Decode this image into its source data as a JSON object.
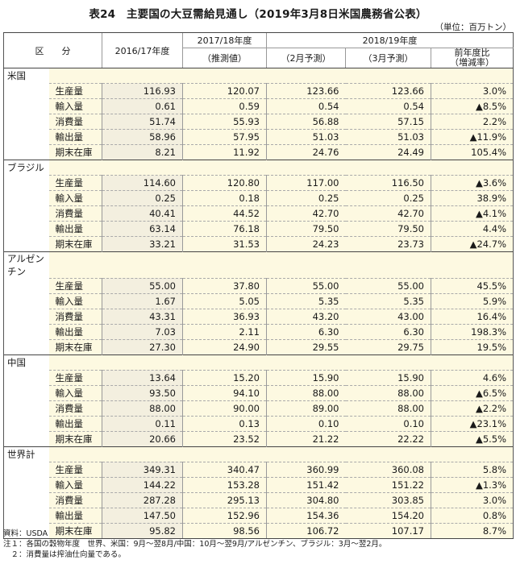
{
  "title": "表24　主要国の大豆需給見通し（2019年3月8日米国農務省公表）",
  "unit": "（単位：百万トン）",
  "header": {
    "category": "区　　分",
    "col_2016": "2016/17年度",
    "col_2017_top": "2017/18年度",
    "col_2017_sub": "（推測値）",
    "col_2018_top": "2018/19年度",
    "col_2018_feb": "（2月予測）",
    "col_2018_mar": "（3月予測）",
    "col_change_top": "前年度比",
    "col_change_sub": "（増減率）"
  },
  "countries": [
    {
      "name": "米国",
      "rows": [
        {
          "item": "生産量",
          "v2016": "116.93",
          "v2017": "120.07",
          "feb": "123.66",
          "mar": "123.66",
          "chg": "3.0%"
        },
        {
          "item": "輸入量",
          "v2016": "0.61",
          "v2017": "0.59",
          "feb": "0.54",
          "mar": "0.54",
          "chg": "▲8.5%"
        },
        {
          "item": "消費量",
          "v2016": "51.74",
          "v2017": "55.93",
          "feb": "56.88",
          "mar": "57.15",
          "chg": "2.2%"
        },
        {
          "item": "輸出量",
          "v2016": "58.96",
          "v2017": "57.95",
          "feb": "51.03",
          "mar": "51.03",
          "chg": "▲11.9%"
        },
        {
          "item": "期末在庫",
          "v2016": "8.21",
          "v2017": "11.92",
          "feb": "24.76",
          "mar": "24.49",
          "chg": "105.4%"
        }
      ]
    },
    {
      "name": "ブラジル",
      "rows": [
        {
          "item": "生産量",
          "v2016": "114.60",
          "v2017": "120.80",
          "feb": "117.00",
          "mar": "116.50",
          "chg": "▲3.6%"
        },
        {
          "item": "輸入量",
          "v2016": "0.25",
          "v2017": "0.18",
          "feb": "0.25",
          "mar": "0.25",
          "chg": "38.9%"
        },
        {
          "item": "消費量",
          "v2016": "40.41",
          "v2017": "44.52",
          "feb": "42.70",
          "mar": "42.70",
          "chg": "▲4.1%"
        },
        {
          "item": "輸出量",
          "v2016": "63.14",
          "v2017": "76.18",
          "feb": "79.50",
          "mar": "79.50",
          "chg": "4.4%"
        },
        {
          "item": "期末在庫",
          "v2016": "33.21",
          "v2017": "31.53",
          "feb": "24.23",
          "mar": "23.73",
          "chg": "▲24.7%"
        }
      ]
    },
    {
      "name": "アルゼンチン",
      "rows": [
        {
          "item": "生産量",
          "v2016": "55.00",
          "v2017": "37.80",
          "feb": "55.00",
          "mar": "55.00",
          "chg": "45.5%"
        },
        {
          "item": "輸入量",
          "v2016": "1.67",
          "v2017": "5.05",
          "feb": "5.35",
          "mar": "5.35",
          "chg": "5.9%"
        },
        {
          "item": "消費量",
          "v2016": "43.31",
          "v2017": "36.93",
          "feb": "43.20",
          "mar": "43.00",
          "chg": "16.4%"
        },
        {
          "item": "輸出量",
          "v2016": "7.03",
          "v2017": "2.11",
          "feb": "6.30",
          "mar": "6.30",
          "chg": "198.3%"
        },
        {
          "item": "期末在庫",
          "v2016": "27.30",
          "v2017": "24.90",
          "feb": "29.55",
          "mar": "29.75",
          "chg": "19.5%"
        }
      ]
    },
    {
      "name": "中国",
      "rows": [
        {
          "item": "生産量",
          "v2016": "13.64",
          "v2017": "15.20",
          "feb": "15.90",
          "mar": "15.90",
          "chg": "4.6%"
        },
        {
          "item": "輸入量",
          "v2016": "93.50",
          "v2017": "94.10",
          "feb": "88.00",
          "mar": "88.00",
          "chg": "▲6.5%"
        },
        {
          "item": "消費量",
          "v2016": "88.00",
          "v2017": "90.00",
          "feb": "89.00",
          "mar": "88.00",
          "chg": "▲2.2%"
        },
        {
          "item": "輸出量",
          "v2016": "0.11",
          "v2017": "0.13",
          "feb": "0.10",
          "mar": "0.10",
          "chg": "▲23.1%"
        },
        {
          "item": "期末在庫",
          "v2016": "20.66",
          "v2017": "23.52",
          "feb": "21.22",
          "mar": "22.22",
          "chg": "▲5.5%"
        }
      ]
    },
    {
      "name": "世界計",
      "rows": [
        {
          "item": "生産量",
          "v2016": "349.31",
          "v2017": "340.47",
          "feb": "360.99",
          "mar": "360.08",
          "chg": "5.8%"
        },
        {
          "item": "輸入量",
          "v2016": "144.22",
          "v2017": "153.28",
          "feb": "151.42",
          "mar": "151.22",
          "chg": "▲1.3%"
        },
        {
          "item": "消費量",
          "v2016": "287.28",
          "v2017": "295.13",
          "feb": "304.80",
          "mar": "303.85",
          "chg": "3.0%"
        },
        {
          "item": "輸出量",
          "v2016": "147.50",
          "v2017": "152.96",
          "feb": "154.36",
          "mar": "154.20",
          "chg": "0.8%"
        },
        {
          "item": "期末在庫",
          "v2016": "95.82",
          "v2017": "98.56",
          "feb": "106.72",
          "mar": "107.17",
          "chg": "8.7%"
        }
      ]
    }
  ],
  "notes": [
    "資料：USDA",
    "注１：各国の穀物年度　世界、米国：9月～翌8月/中国：10月～翌9月/アルゼンチン、ブラジル：3月～翌2月。",
    "　２：消費量は搾油仕向量である。"
  ]
}
